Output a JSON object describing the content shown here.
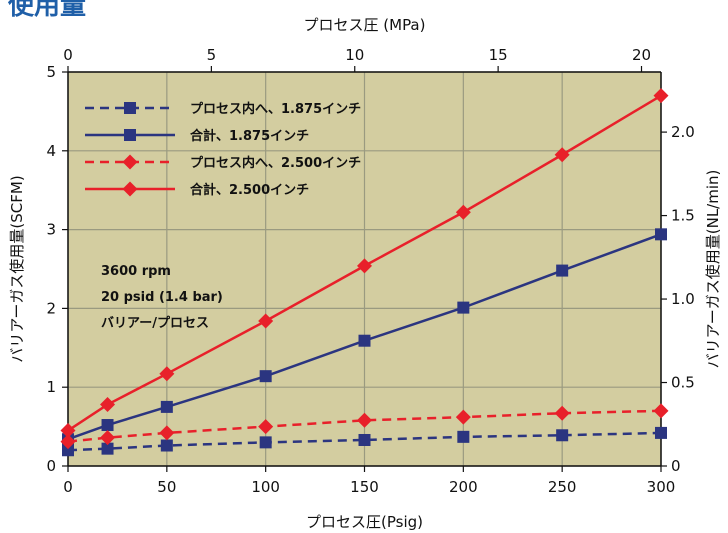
{
  "page_heading": "使用量",
  "chart_data": {
    "type": "line",
    "x": [
      0,
      20,
      50,
      100,
      150,
      200,
      250,
      300
    ],
    "xlabel": "プロセス圧(Psig)",
    "ylabel": "バリアーガス使用量(SCFM)",
    "x2label": "プロセス圧 (MPa)",
    "y2label": "バリアーガス使用量(NL/min)",
    "xlim": [
      0,
      300
    ],
    "ylim": [
      0,
      5
    ],
    "x2lim": [
      0,
      20.68
    ],
    "y2lim": [
      0,
      2.36
    ],
    "xticks": [
      "0",
      "50",
      "100",
      "150",
      "200",
      "250",
      "300"
    ],
    "yticks": [
      "0",
      "1",
      "2",
      "3",
      "4",
      "5"
    ],
    "x2ticks": [
      "0",
      "5",
      "10",
      "15",
      "20"
    ],
    "y2ticks": [
      "0",
      "0.5",
      "1.0",
      "1.5",
      "2.0"
    ],
    "grid": true,
    "plot_background": "#d3cda0",
    "grid_color": "#9a9a80",
    "legend_position": "top-left",
    "series": [
      {
        "name": "プロセス内へ、1.875インチ",
        "color": "#2b3580",
        "dash": true,
        "marker": "square",
        "values": [
          0.2,
          0.22,
          0.26,
          0.3,
          0.33,
          0.37,
          0.39,
          0.42
        ]
      },
      {
        "name": "合計、1.875インチ",
        "color": "#2b3580",
        "dash": false,
        "marker": "square",
        "values": [
          0.34,
          0.52,
          0.75,
          1.14,
          1.59,
          2.01,
          2.48,
          2.94
        ]
      },
      {
        "name": "プロセス内へ、2.500インチ",
        "color": "#e8202a",
        "dash": true,
        "marker": "diamond",
        "values": [
          0.31,
          0.36,
          0.42,
          0.5,
          0.58,
          0.62,
          0.67,
          0.7
        ]
      },
      {
        "name": "合計、2.500インチ",
        "color": "#e8202a",
        "dash": false,
        "marker": "diamond",
        "values": [
          0.45,
          0.78,
          1.17,
          1.84,
          2.54,
          3.22,
          3.95,
          4.7
        ]
      }
    ],
    "annotation_lines": [
      "3600 rpm",
      "20 psid (1.4 bar)",
      "バリアー/プロセス"
    ]
  }
}
